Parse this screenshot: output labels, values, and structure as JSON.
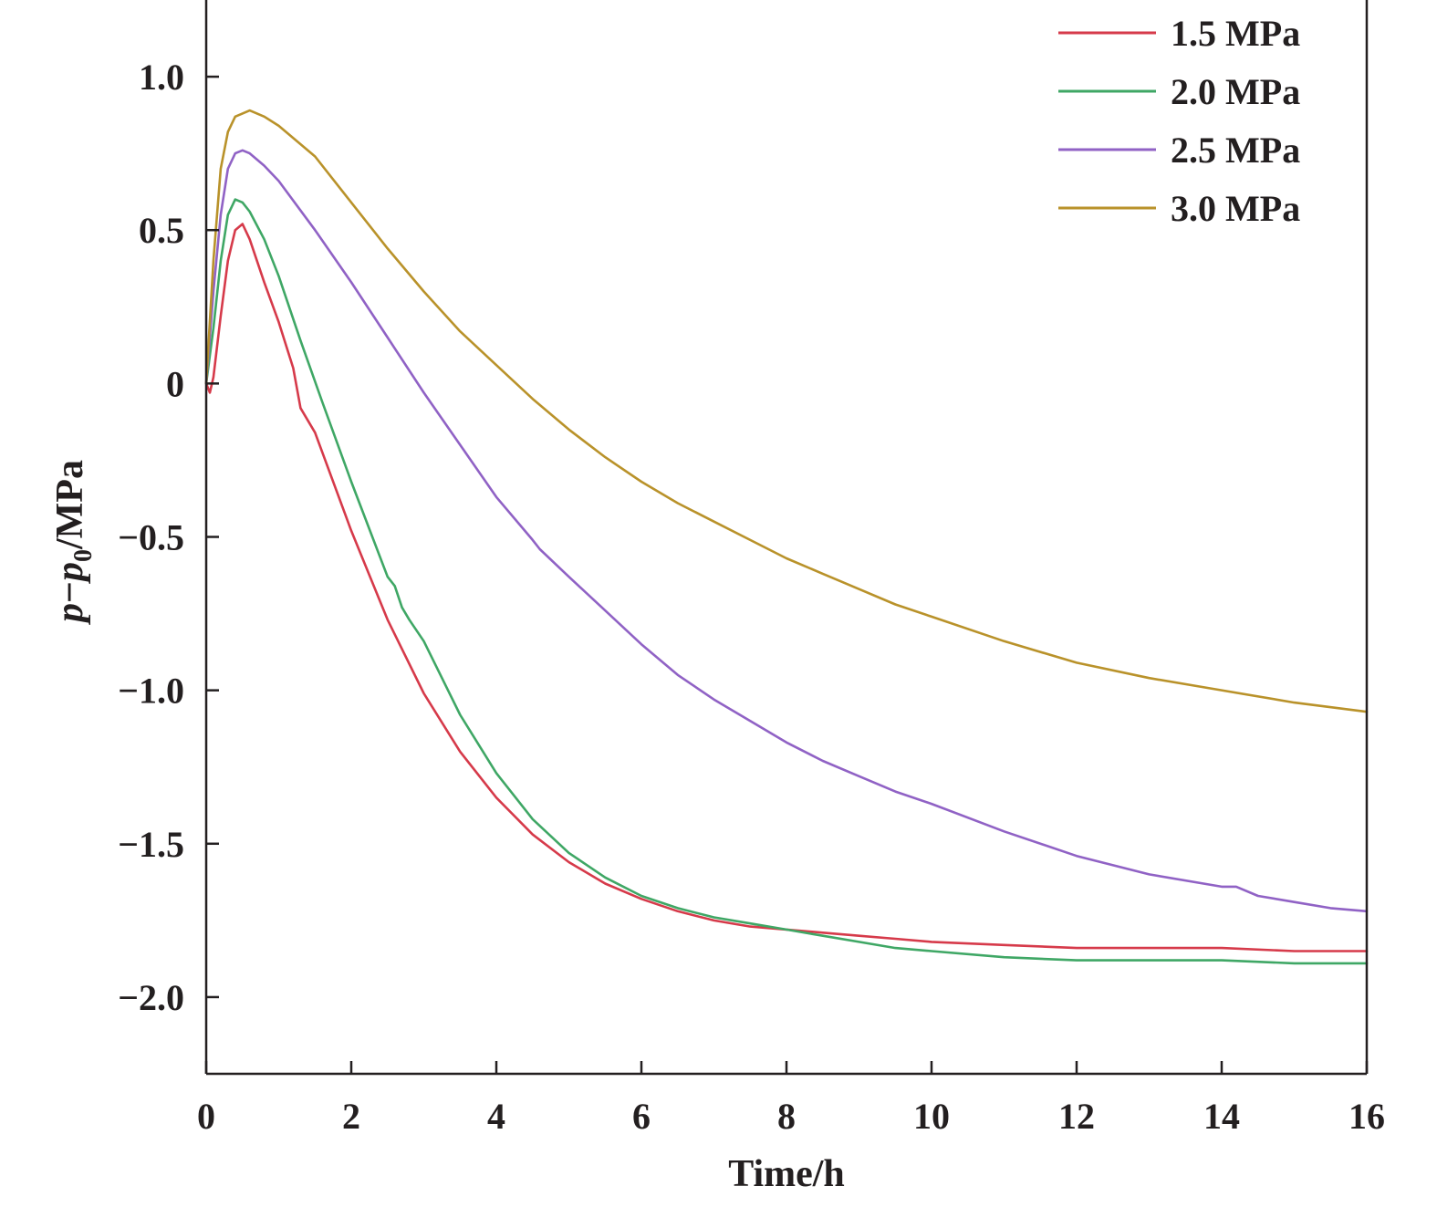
{
  "chart_data": {
    "type": "line",
    "title": "",
    "xlabel": "Time/h",
    "ylabel": {
      "p1": "p",
      "dash": "−",
      "p2": "p",
      "sub": "0",
      "unit": "/MPa"
    },
    "xlim": [
      0,
      16
    ],
    "ylim": [
      -2.25,
      1.25
    ],
    "x_ticks": [
      0,
      2,
      4,
      6,
      8,
      10,
      12,
      14,
      16
    ],
    "x_tick_labels": [
      "0",
      "2",
      "4",
      "6",
      "8",
      "10",
      "12",
      "14",
      "16"
    ],
    "y_ticks": [
      1.0,
      0.5,
      0,
      -0.5,
      -1.0,
      -1.5,
      -2.0
    ],
    "y_tick_labels": [
      "1.0",
      "0.5",
      "0",
      "−0.5",
      "−1.0",
      "−1.5",
      "−2.0"
    ],
    "grid": false,
    "legend_position": "top-right",
    "series": [
      {
        "name": "1.5 MPa",
        "color": "#d63a4a",
        "x": [
          0,
          0.05,
          0.1,
          0.2,
          0.3,
          0.4,
          0.5,
          0.6,
          0.8,
          1.0,
          1.2,
          1.3,
          1.5,
          2.0,
          2.5,
          3.0,
          3.5,
          4.0,
          4.5,
          5.0,
          5.5,
          6.0,
          6.5,
          7.0,
          7.5,
          8.0,
          8.5,
          9.0,
          9.5,
          10.0,
          11.0,
          12.0,
          13.0,
          14.0,
          15.0,
          16.0
        ],
        "y": [
          0.0,
          -0.03,
          0.02,
          0.22,
          0.4,
          0.5,
          0.52,
          0.47,
          0.33,
          0.2,
          0.05,
          -0.08,
          -0.16,
          -0.48,
          -0.77,
          -1.01,
          -1.2,
          -1.35,
          -1.47,
          -1.56,
          -1.63,
          -1.68,
          -1.72,
          -1.75,
          -1.77,
          -1.78,
          -1.79,
          -1.8,
          -1.81,
          -1.82,
          -1.83,
          -1.84,
          -1.84,
          -1.84,
          -1.85,
          -1.85
        ]
      },
      {
        "name": "2.0 MPa",
        "color": "#3fa765",
        "x": [
          0,
          0.1,
          0.2,
          0.3,
          0.4,
          0.5,
          0.6,
          0.8,
          1.0,
          1.3,
          1.6,
          2.0,
          2.5,
          2.6,
          2.7,
          2.8,
          3.0,
          3.5,
          4.0,
          4.5,
          5.0,
          5.5,
          6.0,
          6.5,
          7.0,
          7.5,
          8.0,
          8.5,
          9.0,
          9.5,
          10.0,
          11.0,
          12.0,
          13.0,
          14.0,
          15.0,
          16.0
        ],
        "y": [
          0.0,
          0.18,
          0.4,
          0.55,
          0.6,
          0.59,
          0.56,
          0.47,
          0.35,
          0.14,
          -0.06,
          -0.32,
          -0.63,
          -0.66,
          -0.73,
          -0.77,
          -0.84,
          -1.08,
          -1.27,
          -1.42,
          -1.53,
          -1.61,
          -1.67,
          -1.71,
          -1.74,
          -1.76,
          -1.78,
          -1.8,
          -1.82,
          -1.84,
          -1.85,
          -1.87,
          -1.88,
          -1.88,
          -1.88,
          -1.89,
          -1.89
        ]
      },
      {
        "name": "2.5 MPa",
        "color": "#9062c5",
        "x": [
          0,
          0.1,
          0.2,
          0.3,
          0.4,
          0.5,
          0.6,
          0.8,
          1.0,
          1.5,
          2.0,
          2.5,
          3.0,
          3.5,
          4.0,
          4.5,
          4.6,
          5.0,
          5.5,
          6.0,
          6.5,
          7.0,
          7.5,
          8.0,
          8.5,
          9.0,
          9.5,
          10.0,
          11.0,
          12.0,
          13.0,
          14.0,
          14.2,
          14.5,
          15.0,
          15.5,
          16.0
        ],
        "y": [
          0.0,
          0.3,
          0.55,
          0.7,
          0.75,
          0.76,
          0.75,
          0.71,
          0.66,
          0.5,
          0.33,
          0.15,
          -0.03,
          -0.2,
          -0.37,
          -0.51,
          -0.54,
          -0.63,
          -0.74,
          -0.85,
          -0.95,
          -1.03,
          -1.1,
          -1.17,
          -1.23,
          -1.28,
          -1.33,
          -1.37,
          -1.46,
          -1.54,
          -1.6,
          -1.64,
          -1.64,
          -1.67,
          -1.69,
          -1.71,
          -1.72
        ]
      },
      {
        "name": "3.0 MPa",
        "color": "#b9922a",
        "x": [
          0,
          0.1,
          0.2,
          0.3,
          0.4,
          0.5,
          0.6,
          0.8,
          1.0,
          1.5,
          2.0,
          2.5,
          3.0,
          3.5,
          4.0,
          4.5,
          5.0,
          5.5,
          6.0,
          6.5,
          7.0,
          7.5,
          8.0,
          8.5,
          9.0,
          9.5,
          10.0,
          11.0,
          12.0,
          13.0,
          14.0,
          15.0,
          16.0
        ],
        "y": [
          0.0,
          0.4,
          0.7,
          0.82,
          0.87,
          0.88,
          0.89,
          0.87,
          0.84,
          0.74,
          0.59,
          0.44,
          0.3,
          0.17,
          0.06,
          -0.05,
          -0.15,
          -0.24,
          -0.32,
          -0.39,
          -0.45,
          -0.51,
          -0.57,
          -0.62,
          -0.67,
          -0.72,
          -0.76,
          -0.84,
          -0.91,
          -0.96,
          -1.0,
          -1.04,
          -1.07
        ]
      }
    ]
  }
}
